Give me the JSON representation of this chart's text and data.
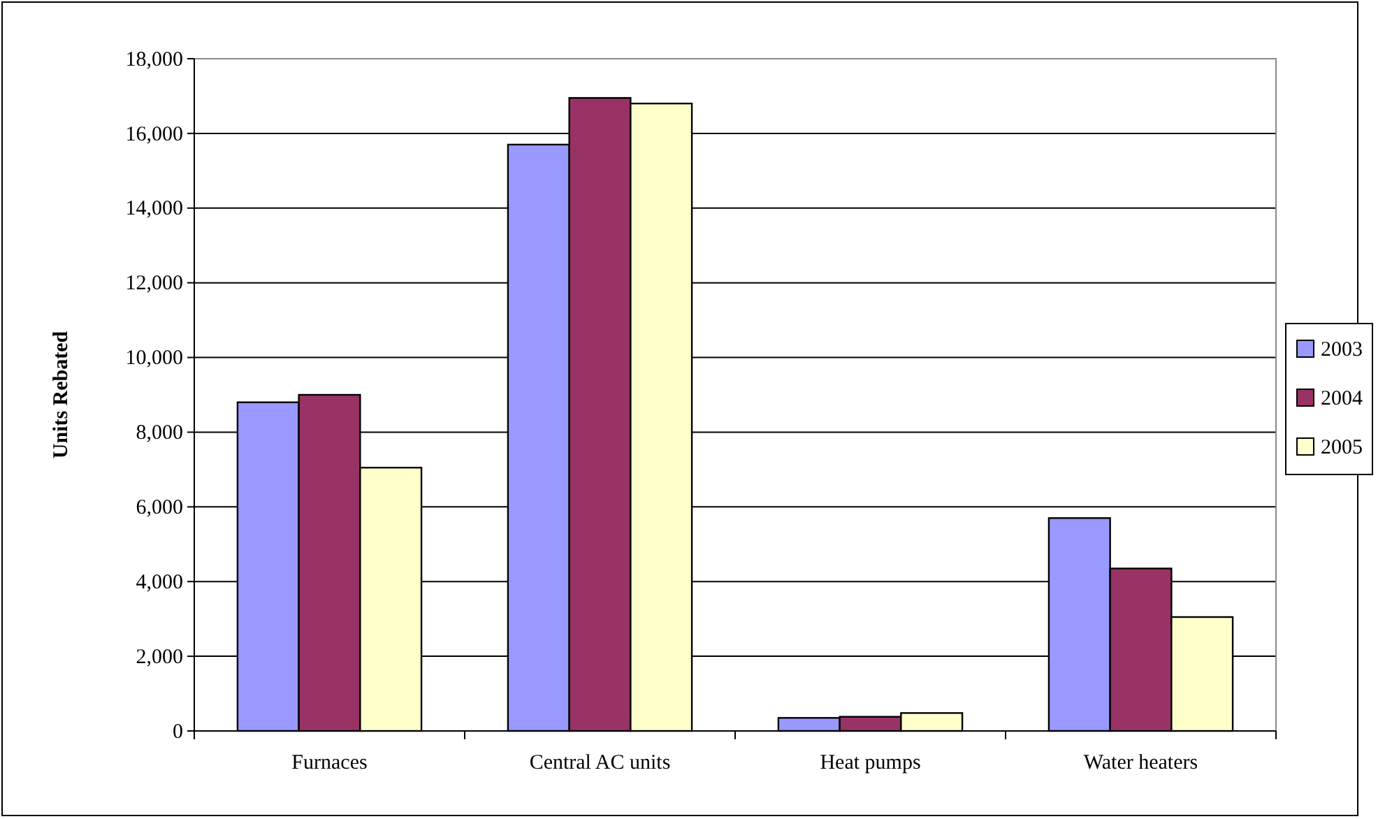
{
  "chart_data": {
    "type": "bar",
    "ylabel": "Units Rebated",
    "categories": [
      "Furnaces",
      "Central AC units",
      "Heat pumps",
      "Water heaters"
    ],
    "series": [
      {
        "name": "2003",
        "color": "#9999ff",
        "values": [
          8800,
          15700,
          350,
          5700
        ]
      },
      {
        "name": "2004",
        "color": "#993366",
        "values": [
          9000,
          16950,
          380,
          4350
        ]
      },
      {
        "name": "2005",
        "color": "#ffffcc",
        "values": [
          7050,
          16800,
          480,
          3050
        ]
      }
    ],
    "ylim": [
      0,
      18000
    ],
    "yticks": [
      {
        "value": 0,
        "label": "0"
      },
      {
        "value": 2000,
        "label": "2,000"
      },
      {
        "value": 4000,
        "label": "4,000"
      },
      {
        "value": 6000,
        "label": "6,000"
      },
      {
        "value": 8000,
        "label": "8,000"
      },
      {
        "value": 10000,
        "label": "10,000"
      },
      {
        "value": 12000,
        "label": "12,000"
      },
      {
        "value": 14000,
        "label": "14,000"
      },
      {
        "value": 16000,
        "label": "16,000"
      },
      {
        "value": 18000,
        "label": "18,000"
      }
    ],
    "grid": "y",
    "legend": "right"
  }
}
